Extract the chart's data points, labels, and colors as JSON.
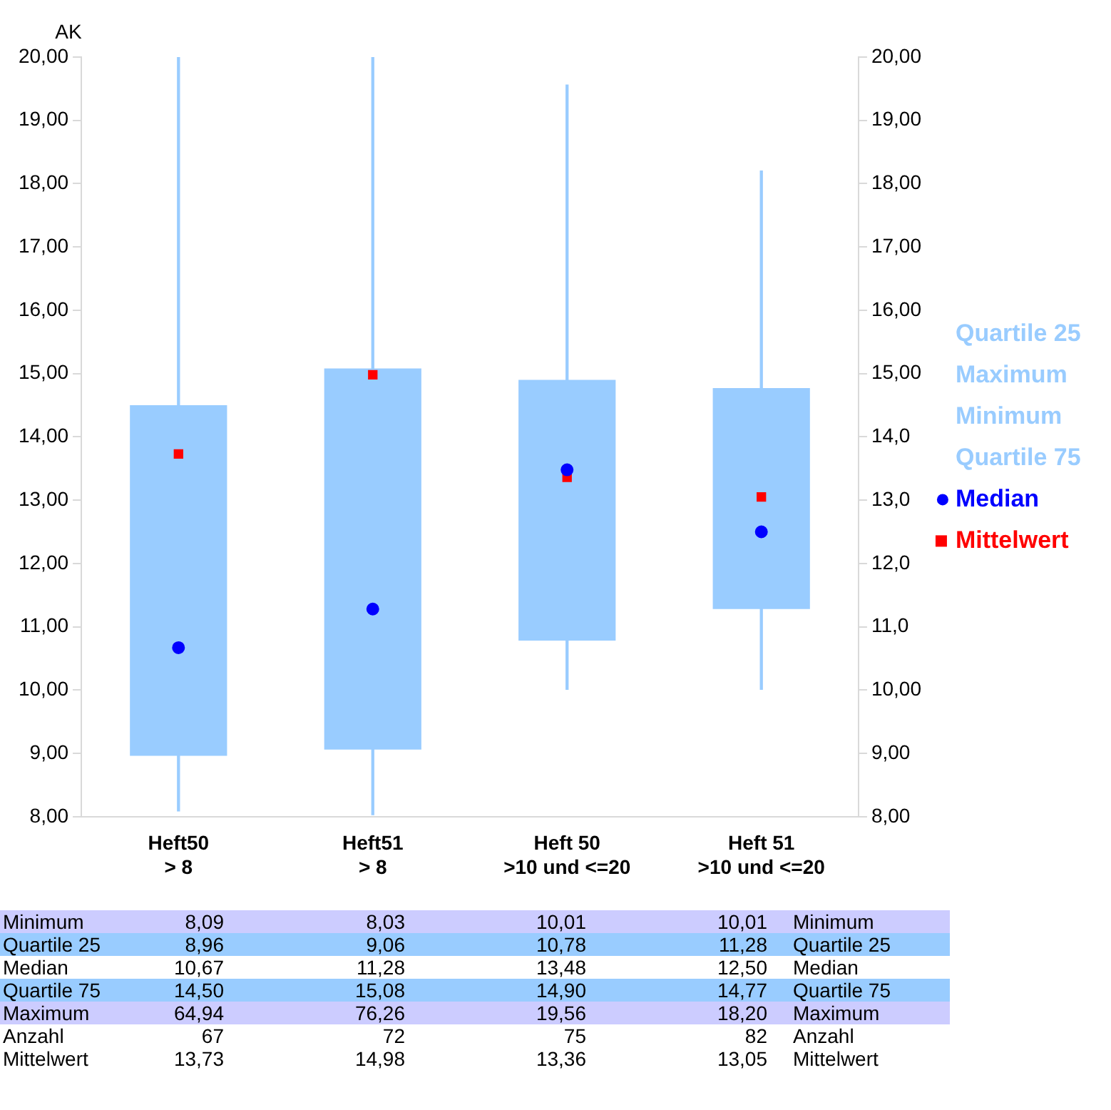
{
  "chart_data": [
    {
      "type": "box",
      "ylabel": "AK",
      "categories": [
        "Heft50\n> 8",
        "Heft51\n> 8",
        "Heft 50\n>10 und <=20",
        "Heft 51\n>10 und <=20"
      ],
      "series": [
        {
          "name": "Quartile 25",
          "type": "box",
          "color": "#99ccff",
          "boxes": [
            {
              "low": 8.09,
              "q1": 8.96,
              "q3": 14.5,
              "high": 20
            },
            {
              "low": 8.03,
              "q1": 9.06,
              "q3": 15.08,
              "high": 20
            },
            {
              "low": 10.01,
              "q1": 10.78,
              "q3": 14.9,
              "high": 19.56
            },
            {
              "low": 10.01,
              "q1": 11.28,
              "q3": 14.77,
              "high": 18.2
            }
          ]
        },
        {
          "name": "Median",
          "type": "scatter",
          "marker": "circle",
          "color": "#0000ff",
          "values": [
            10.67,
            11.28,
            13.48,
            12.5
          ]
        },
        {
          "name": "Mittelwert",
          "type": "scatter",
          "marker": "square",
          "color": "#ff0000",
          "values": [
            13.73,
            14.98,
            13.36,
            13.05
          ]
        }
      ],
      "annotations": [
        "Maximum",
        "Minimum",
        "Quartile 75"
      ],
      "ylim": [
        8,
        20
      ],
      "yticks": [
        {
          "value": 8,
          "label": "8,00"
        },
        {
          "value": 9,
          "label": "9,00"
        },
        {
          "value": 10,
          "label": "10,00"
        },
        {
          "value": 11,
          "label": "11,00"
        },
        {
          "value": 12,
          "label": "12,00"
        },
        {
          "value": 13,
          "label": "13,00"
        },
        {
          "value": 14,
          "label": "14,00"
        },
        {
          "value": 15,
          "label": "15,00"
        },
        {
          "value": 16,
          "label": "16,00"
        },
        {
          "value": 17,
          "label": "17,00"
        },
        {
          "value": 18,
          "label": "18,00"
        },
        {
          "value": 19,
          "label": "19,00"
        },
        {
          "value": 20,
          "label": "20,00"
        }
      ],
      "y2lim": [
        8,
        20
      ],
      "y2ticks": [
        {
          "value": 8,
          "label": "8,00"
        },
        {
          "value": 9,
          "label": "9,00"
        },
        {
          "value": 10,
          "label": "10,00"
        },
        {
          "value": 11,
          "label": "11,0"
        },
        {
          "value": 12,
          "label": "12,0"
        },
        {
          "value": 13,
          "label": "13,0"
        },
        {
          "value": 14,
          "label": "14,0"
        },
        {
          "value": 15,
          "label": "15,00"
        },
        {
          "value": 16,
          "label": "16,00"
        },
        {
          "value": 17,
          "label": "17,00"
        },
        {
          "value": 18,
          "label": "18,00"
        },
        {
          "value": 19,
          "label": "19,00"
        },
        {
          "value": 20,
          "label": "20,00"
        }
      ],
      "legend": "right"
    },
    {
      "type": "other",
      "y_categories": [
        "Minimum",
        "Quartile 25",
        "Median",
        "Quartile 75",
        "Maximum",
        "Anzahl",
        "Mittelwert"
      ],
      "y2_categories": [
        "Minimum",
        "Quartile 25",
        "Median",
        "Quartile 75",
        "Maximum",
        "Anzahl",
        "Mittelwert"
      ],
      "cell_labels": [
        [
          "8,09",
          "8,03",
          "10,01",
          "10,01"
        ],
        [
          "8,96",
          "9,06",
          "10,78",
          "11,28"
        ],
        [
          "10,67",
          "11,28",
          "13,48",
          "12,50"
        ],
        [
          "14,50",
          "15,08",
          "14,90",
          "14,77"
        ],
        [
          "64,94",
          "76,26",
          "19,56",
          "18,20"
        ],
        [
          "67",
          "72",
          "75",
          "82"
        ],
        [
          "13,73",
          "14,98",
          "13,36",
          "13,05"
        ]
      ],
      "colors": [
        "#ccccff",
        "#99ccff",
        null,
        "#99ccff",
        "#ccccff",
        null,
        null
      ]
    }
  ]
}
